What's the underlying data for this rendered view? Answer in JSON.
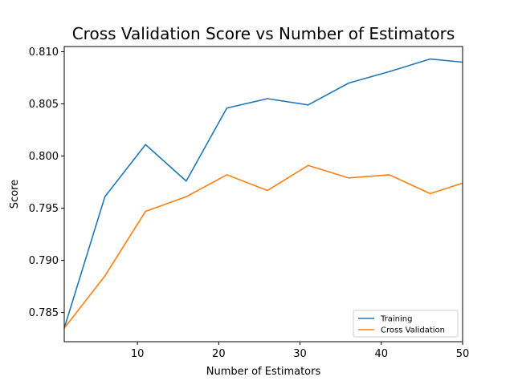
{
  "chart_data": {
    "type": "line",
    "title": "Cross Validation Score vs Number of Estimators",
    "xlabel": "Number of Estimators",
    "ylabel": "Score",
    "xlim": [
      1,
      50
    ],
    "ylim": [
      0.7822,
      0.8105
    ],
    "xticks": [
      10,
      20,
      30,
      40,
      50
    ],
    "yticks": [
      0.785,
      0.79,
      0.795,
      0.8,
      0.805,
      0.81
    ],
    "ytick_labels": [
      "0.785",
      "0.790",
      "0.795",
      "0.800",
      "0.805",
      "0.810"
    ],
    "grid": false,
    "legend_position": "lower-right",
    "x": [
      1,
      6,
      11,
      16,
      21,
      26,
      31,
      36,
      41,
      46,
      50
    ],
    "series": [
      {
        "name": "Training",
        "color": "#1f77b4",
        "values": [
          0.7835,
          0.7961,
          0.8011,
          0.7976,
          0.8046,
          0.8055,
          0.8049,
          0.807,
          0.8081,
          0.8093,
          0.809
        ]
      },
      {
        "name": "Cross Validation",
        "color": "#ff7f0e",
        "values": [
          0.7835,
          0.7885,
          0.7947,
          0.7961,
          0.7982,
          0.7967,
          0.7991,
          0.7979,
          0.7982,
          0.7964,
          0.7974
        ]
      }
    ]
  }
}
